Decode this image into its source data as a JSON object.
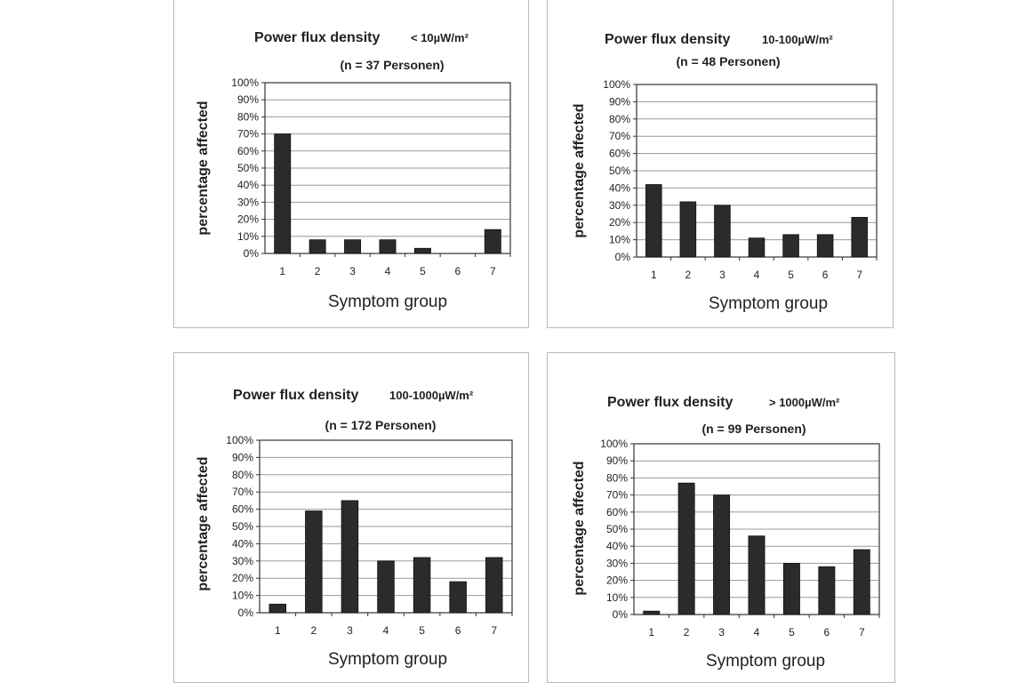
{
  "chart_data": [
    {
      "type": "bar",
      "title": "Power flux density",
      "title_unit": "< 10µW/m²",
      "subtitle": "(n = 37 Personen)",
      "xlabel": "Symptom group",
      "ylabel": "percentage affected",
      "categories": [
        "1",
        "2",
        "3",
        "4",
        "5",
        "6",
        "7"
      ],
      "values": [
        70,
        8,
        8,
        8,
        3,
        0,
        14
      ],
      "ylim": [
        0,
        100
      ],
      "yticks": [
        "0%",
        "10%",
        "20%",
        "30%",
        "40%",
        "50%",
        "60%",
        "70%",
        "80%",
        "90%",
        "100%"
      ],
      "grid": true,
      "bar_color": "#2b2b2b"
    },
    {
      "type": "bar",
      "title": "Power flux density",
      "title_unit": "10-100µW/m²",
      "subtitle": "(n = 48 Personen)",
      "xlabel": "Symptom group",
      "ylabel": "percentage affected",
      "categories": [
        "1",
        "2",
        "3",
        "4",
        "5",
        "6",
        "7"
      ],
      "values": [
        42,
        32,
        30,
        11,
        13,
        13,
        23
      ],
      "ylim": [
        0,
        100
      ],
      "yticks": [
        "0%",
        "10%",
        "20%",
        "30%",
        "40%",
        "50%",
        "60%",
        "70%",
        "80%",
        "90%",
        "100%"
      ],
      "grid": true,
      "bar_color": "#2b2b2b"
    },
    {
      "type": "bar",
      "title": "Power flux density",
      "title_unit": "100-1000µW/m²",
      "subtitle": "(n = 172 Personen)",
      "xlabel": "Symptom group",
      "ylabel": "percentage affected",
      "categories": [
        "1",
        "2",
        "3",
        "4",
        "5",
        "6",
        "7"
      ],
      "values": [
        5,
        59,
        65,
        30,
        32,
        18,
        32
      ],
      "ylim": [
        0,
        100
      ],
      "yticks": [
        "0%",
        "10%",
        "20%",
        "30%",
        "40%",
        "50%",
        "60%",
        "70%",
        "80%",
        "90%",
        "100%"
      ],
      "grid": true,
      "bar_color": "#2b2b2b"
    },
    {
      "type": "bar",
      "title": "Power flux density",
      "title_unit": "> 1000µW/m²",
      "subtitle": "(n = 99 Personen)",
      "xlabel": "Symptom group",
      "ylabel": "percentage affected",
      "categories": [
        "1",
        "2",
        "3",
        "4",
        "5",
        "6",
        "7"
      ],
      "values": [
        2,
        77,
        70,
        46,
        30,
        28,
        38
      ],
      "ylim": [
        0,
        100
      ],
      "yticks": [
        "0%",
        "10%",
        "20%",
        "30%",
        "40%",
        "50%",
        "60%",
        "70%",
        "80%",
        "90%",
        "100%"
      ],
      "grid": true,
      "bar_color": "#2b2b2b"
    }
  ]
}
